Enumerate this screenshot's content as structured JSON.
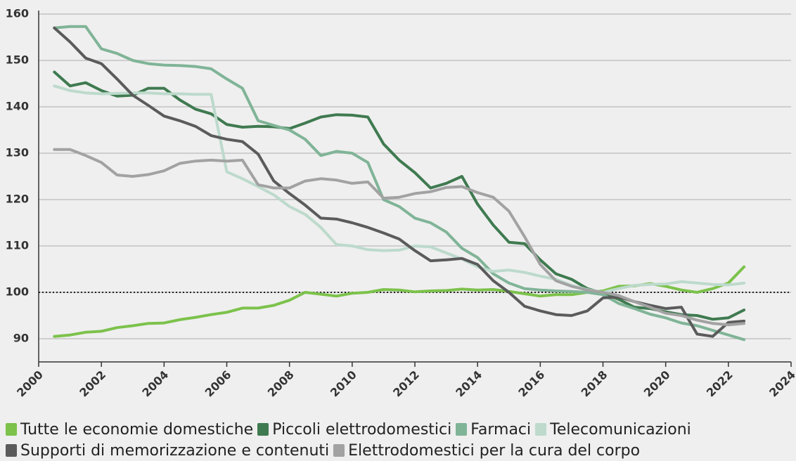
{
  "chart_data": {
    "type": "line",
    "x": [
      2000.5,
      2001,
      2001.5,
      2002,
      2002.5,
      2003,
      2003.5,
      2004,
      2004.5,
      2005,
      2005.5,
      2006,
      2006.5,
      2007,
      2007.5,
      2008,
      2008.5,
      2009,
      2009.5,
      2010,
      2010.5,
      2011,
      2011.5,
      2012,
      2012.5,
      2013,
      2013.5,
      2014,
      2014.5,
      2015,
      2015.5,
      2016,
      2016.5,
      2017,
      2017.5,
      2018,
      2018.5,
      2019,
      2019.5,
      2020,
      2020.5,
      2021,
      2021.5,
      2022,
      2022.5
    ],
    "series": [
      {
        "name": "Tutte le economie domestiche",
        "color": "#7cc24b",
        "values": [
          90.5,
          90.8,
          91.4,
          91.6,
          92.4,
          92.8,
          93.3,
          93.4,
          94.1,
          94.6,
          95.2,
          95.7,
          96.6,
          96.6,
          97.2,
          98.3,
          100,
          99.6,
          99.2,
          99.8,
          100,
          100.6,
          100.5,
          100.1,
          100.3,
          100.4,
          100.7,
          100.5,
          100.6,
          100.2,
          99.7,
          99.2,
          99.5,
          99.5,
          100,
          100.3,
          101.3,
          101.4,
          101.9,
          101.3,
          100.5,
          100,
          100.8,
          102,
          105.5
        ]
      },
      {
        "name": "Piccoli elettrodomestici",
        "color": "#3f7a50",
        "values": [
          147.5,
          144.5,
          145.2,
          143.5,
          142.3,
          142.5,
          144,
          144,
          141.5,
          139.5,
          138.5,
          136.2,
          135.6,
          135.8,
          135.7,
          135.3,
          136.5,
          137.8,
          138.3,
          138.2,
          137.8,
          132,
          128.5,
          125.8,
          122.5,
          123.5,
          125,
          119,
          114.5,
          110.8,
          110.5,
          107,
          104,
          102.8,
          100.8,
          99.8,
          98.5,
          96.8,
          96.5,
          95.8,
          95.2,
          95,
          94.2,
          94.5,
          96.2
        ]
      },
      {
        "name": "Farmaci",
        "color": "#80b497",
        "values": [
          157,
          157.3,
          157.3,
          152.5,
          151.5,
          150,
          149.3,
          149,
          148.9,
          148.7,
          148.2,
          146,
          144,
          137,
          136,
          135,
          133,
          129.5,
          130.4,
          130,
          128,
          120,
          118.5,
          116,
          115,
          113,
          109.5,
          107.5,
          104,
          102,
          100.8,
          100.5,
          100.3,
          100.2,
          100,
          99.5,
          97.6,
          96.5,
          95.3,
          94.5,
          93.4,
          92.8,
          91.8,
          90.8,
          89.8
        ]
      },
      {
        "name": "Telecomunicazioni",
        "color": "#bddacc",
        "values": [
          144.5,
          143.5,
          143,
          142.8,
          142.9,
          143,
          143,
          142.8,
          142.8,
          142.7,
          142.7,
          126,
          124.5,
          122.8,
          121,
          118.5,
          116.8,
          114,
          110.3,
          110,
          109.2,
          109,
          109.1,
          110,
          109.8,
          108.5,
          107.2,
          105.5,
          104.5,
          104.8,
          104.3,
          103.5,
          102.8,
          101.5,
          100.6,
          100,
          100.8,
          101.5,
          101.7,
          101.8,
          102.3,
          102,
          101.7,
          101.6,
          102
        ]
      },
      {
        "name": "Supporti di memorizzazione e contenuti",
        "color": "#5b5b5b",
        "values": [
          157,
          154,
          150.5,
          149.3,
          146,
          142.5,
          140.3,
          138,
          137,
          135.8,
          133.8,
          133,
          132.5,
          129.8,
          124,
          121.3,
          118.8,
          116,
          115.8,
          115,
          114,
          112.8,
          111.5,
          109,
          106.8,
          107,
          107.3,
          106,
          102.5,
          100,
          97,
          96,
          95.2,
          95,
          96,
          98.8,
          99,
          98,
          97.2,
          96.5,
          96.8,
          91,
          90.5,
          93.5,
          93.8
        ]
      },
      {
        "name": "Elettrodomestici per la cura del corpo",
        "color": "#a2a2a2",
        "values": [
          130.8,
          130.8,
          129.5,
          128,
          125.3,
          125,
          125.4,
          126.2,
          127.8,
          128.3,
          128.5,
          128.3,
          128.5,
          123.2,
          122.5,
          122.5,
          124,
          124.5,
          124.2,
          123.5,
          123.8,
          120.3,
          120.5,
          121.3,
          121.7,
          122.6,
          122.8,
          121.5,
          120.5,
          117.5,
          112,
          106,
          102.5,
          101.3,
          100.5,
          100,
          99.3,
          98,
          96.8,
          95.5,
          95,
          94,
          93.3,
          93,
          93.3
        ]
      }
    ],
    "xlim": [
      2000,
      2024
    ],
    "xticks": [
      2000,
      2002,
      2004,
      2006,
      2008,
      2010,
      2012,
      2014,
      2016,
      2018,
      2020,
      2022,
      2024
    ],
    "ylim": [
      85,
      160
    ],
    "yticks": [
      90,
      100,
      110,
      120,
      130,
      140,
      150,
      160
    ],
    "reference_line": 100,
    "grid": true
  }
}
